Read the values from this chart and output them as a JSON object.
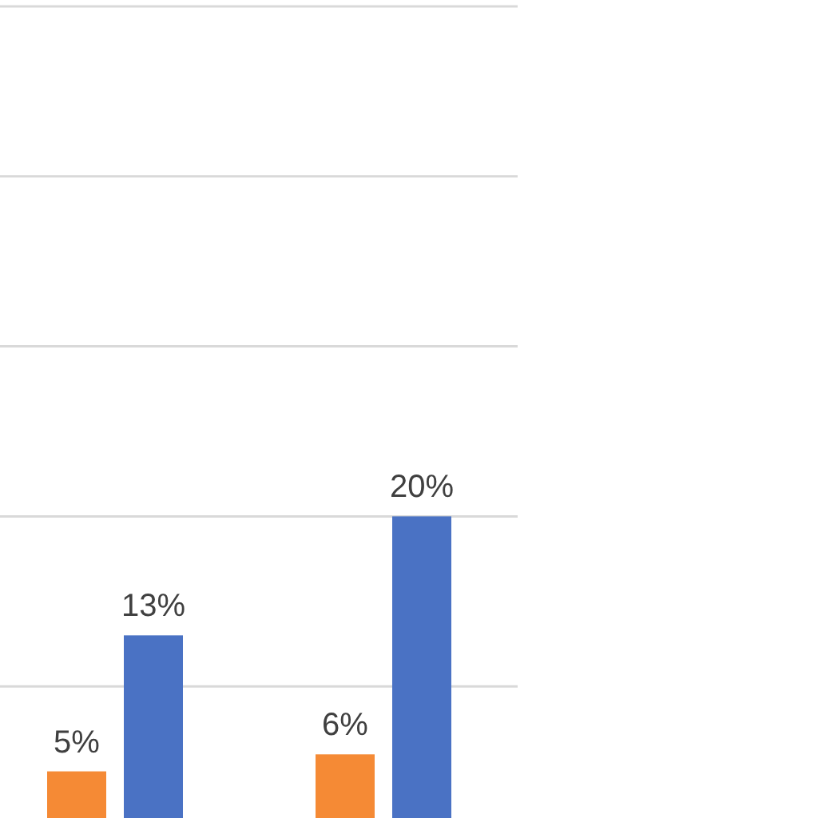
{
  "chart_data": {
    "type": "bar",
    "categories": [
      null,
      null
    ],
    "series": [
      {
        "color": "#f58a35",
        "values": [
          5,
          6
        ],
        "value_labels": [
          "5%",
          "6%"
        ]
      },
      {
        "color": "#4a72c4",
        "values": [
          13,
          20
        ],
        "value_labels": [
          "13%",
          "20%"
        ]
      }
    ],
    "ylim": [
      0,
      50
    ],
    "yticks": [
      {
        "value": 10,
        "label": null
      },
      {
        "value": 20,
        "label": null
      },
      {
        "value": 30,
        "label": null
      },
      {
        "value": 40,
        "label": null
      },
      {
        "value": 50,
        "label": null
      }
    ],
    "grid": "y"
  }
}
